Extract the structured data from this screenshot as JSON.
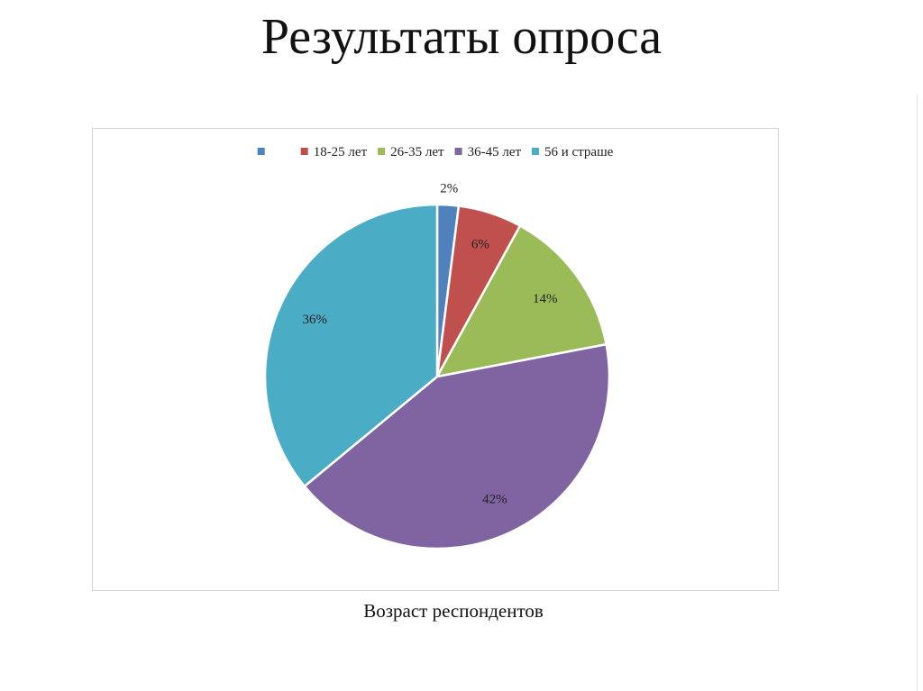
{
  "slide": {
    "title": "Результаты опроса",
    "caption": "Возраст респондентов"
  },
  "chart_data": {
    "type": "pie",
    "title": "",
    "legend_position": "top",
    "start_angle_deg": 0,
    "direction": "clockwise",
    "slices": [
      {
        "label": "",
        "value": 2,
        "display": "2%",
        "color": "#4F81BD"
      },
      {
        "label": "18-25 лет",
        "value": 6,
        "display": "6%",
        "color": "#C0504D"
      },
      {
        "label": "26-35 лет",
        "value": 14,
        "display": "14%",
        "color": "#9BBB59"
      },
      {
        "label": "36-45 лет",
        "value": 42,
        "display": "42%",
        "color": "#8064A2"
      },
      {
        "label": "56 и страше",
        "value": 36,
        "display": "36%",
        "color": "#4BACC6"
      }
    ]
  }
}
